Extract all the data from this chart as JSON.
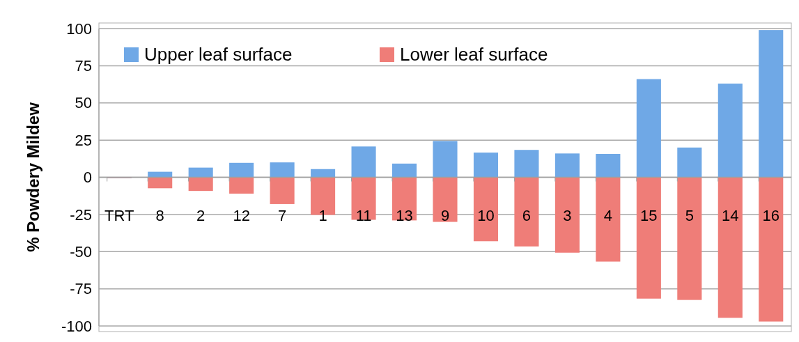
{
  "chart_data": {
    "type": "bar",
    "ylabel": "% Powdery Mildew",
    "categories": [
      "TRT",
      "8",
      "2",
      "12",
      "7",
      "1",
      "11",
      "13",
      "9",
      "10",
      "6",
      "3",
      "4",
      "15",
      "5",
      "14",
      "16"
    ],
    "series": [
      {
        "name": "Upper leaf surface",
        "color": "#6fa8e6",
        "values": [
          0,
          3.7,
          6.5,
          9.7,
          10,
          5.5,
          20.7,
          9.2,
          24.4,
          16.6,
          18.4,
          16,
          15.7,
          66,
          20,
          63,
          99
        ]
      },
      {
        "name": "Lower leaf surface",
        "color": "#ef7d78",
        "values": [
          0,
          -7.4,
          -9.2,
          -11,
          -18,
          -25.3,
          -28.6,
          -29,
          -30,
          -43,
          -46.5,
          -50.7,
          -56.7,
          -81.6,
          -82.5,
          -94.5,
          -97
        ]
      }
    ],
    "ylim": [
      -100,
      100
    ],
    "yticks": [
      -100,
      -75,
      -50,
      -25,
      0,
      25,
      50,
      75,
      100
    ],
    "grid": "y",
    "stacked": true,
    "legend": "top left"
  }
}
